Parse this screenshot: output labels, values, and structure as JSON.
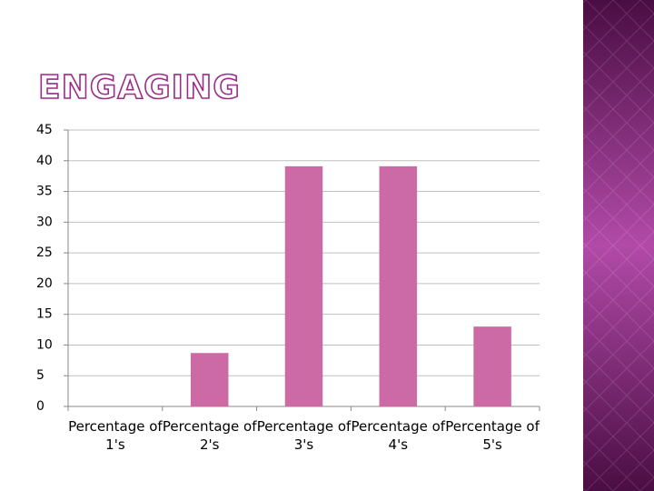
{
  "title": "ENGAGING",
  "chart_data": {
    "type": "bar",
    "categories": [
      "Percentage of 1's",
      "Percentage of 2's",
      "Percentage of 3's",
      "Percentage of 4's",
      "Percentage of 5's"
    ],
    "values": [
      0,
      8.7,
      39.1,
      39.1,
      13.0
    ],
    "color": "#cc6aa5",
    "ylim": [
      0,
      45
    ],
    "yticks": [
      0,
      5,
      10,
      15,
      20,
      25,
      30,
      35,
      40,
      45
    ],
    "grid": true
  }
}
